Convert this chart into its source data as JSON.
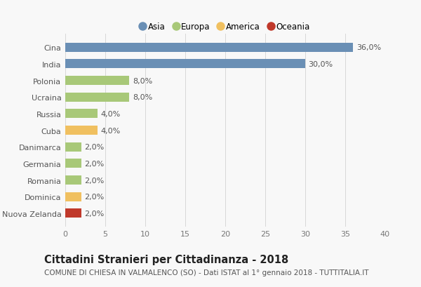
{
  "categories": [
    "Nuova Zelanda",
    "Dominica",
    "Romania",
    "Germania",
    "Danimarca",
    "Cuba",
    "Russia",
    "Ucraina",
    "Polonia",
    "India",
    "Cina"
  ],
  "values": [
    2.0,
    2.0,
    2.0,
    2.0,
    2.0,
    4.0,
    4.0,
    8.0,
    8.0,
    30.0,
    36.0
  ],
  "colors": [
    "#c0392b",
    "#f0c060",
    "#a8c878",
    "#a8c878",
    "#a8c878",
    "#f0c060",
    "#a8c878",
    "#a8c878",
    "#a8c878",
    "#6a8fb5",
    "#6a8fb5"
  ],
  "bar_labels": [
    "2,0%",
    "2,0%",
    "2,0%",
    "2,0%",
    "2,0%",
    "4,0%",
    "4,0%",
    "8,0%",
    "8,0%",
    "30,0%",
    "36,0%"
  ],
  "xlim": [
    0,
    40
  ],
  "xticks": [
    0,
    5,
    10,
    15,
    20,
    25,
    30,
    35,
    40
  ],
  "title": "Cittadini Stranieri per Cittadinanza - 2018",
  "subtitle": "COMUNE DI CHIESA IN VALMALENCO (SO) - Dati ISTAT al 1° gennaio 2018 - TUTTITALIA.IT",
  "legend_labels": [
    "Asia",
    "Europa",
    "America",
    "Oceania"
  ],
  "legend_colors": [
    "#6a8fb5",
    "#a8c878",
    "#f0c060",
    "#c0392b"
  ],
  "bg_color": "#f8f8f8",
  "grid_color": "#d8d8d8",
  "title_fontsize": 10.5,
  "subtitle_fontsize": 7.5,
  "label_fontsize": 8,
  "tick_fontsize": 8,
  "legend_fontsize": 8.5
}
